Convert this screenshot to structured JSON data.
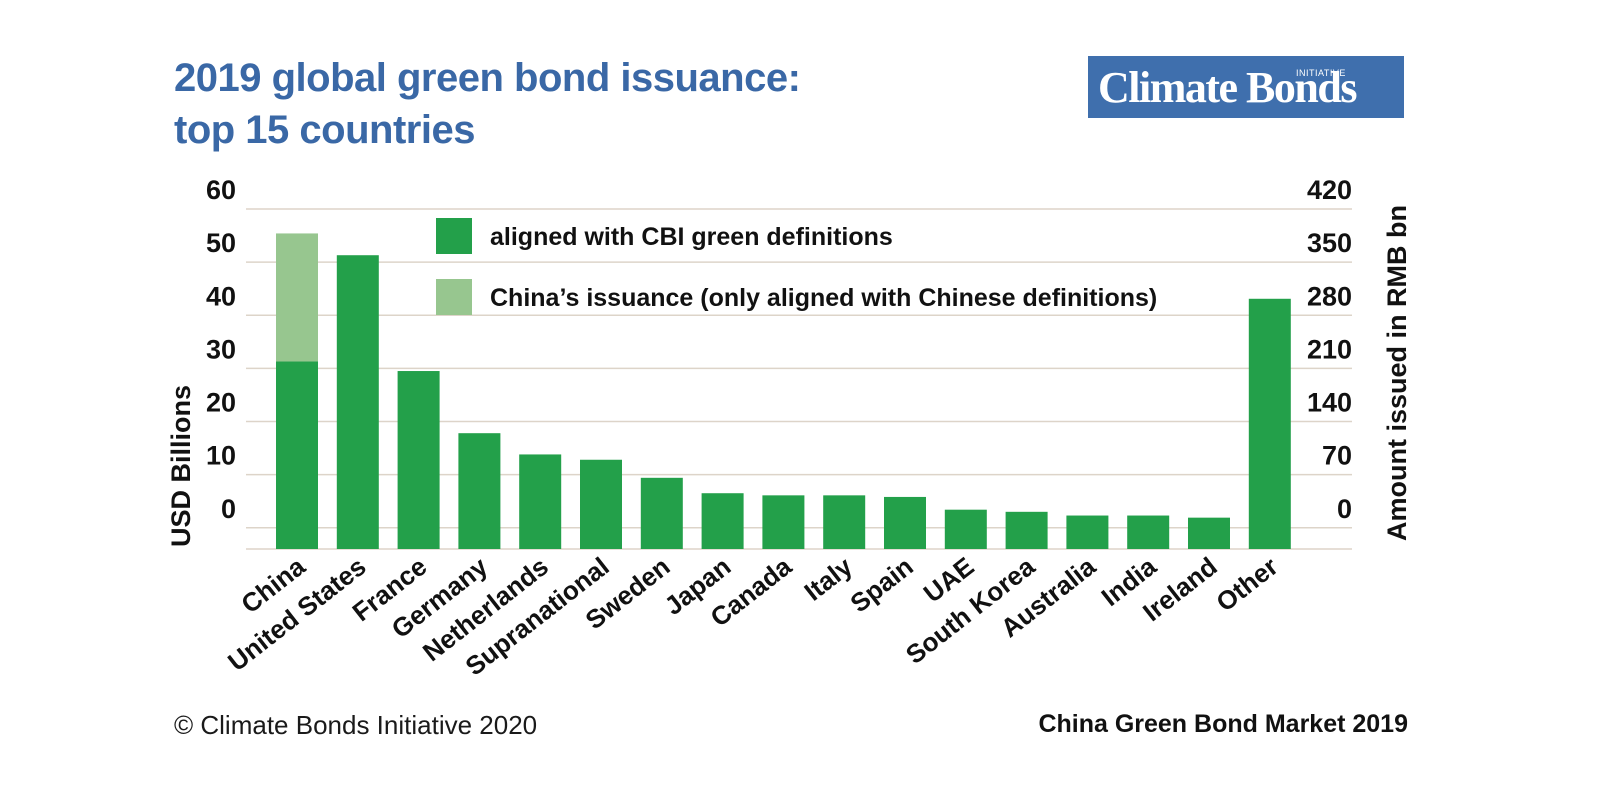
{
  "header": {
    "title_line1": "2019 global green bond issuance:",
    "title_line2": "top 15 countries"
  },
  "logo": {
    "main": "Climate Bonds",
    "sub": "INITIATIVE"
  },
  "footer": {
    "copyright": "© Climate Bonds Initiative 2020",
    "report": "China Green Bond Market 2019"
  },
  "colors": {
    "title": "#3a68a6",
    "logo_bg": "#3f6fad",
    "aligned": "#23a04a",
    "china_only": "#97c68f",
    "gridline": "#ddd4c9",
    "text": "#111111"
  },
  "chart_data": {
    "type": "bar",
    "stacked": true,
    "title": "2019 global green bond issuance: top 15 countries",
    "categories": [
      "China",
      "United States",
      "France",
      "Germany",
      "Netherlands",
      "Supranational",
      "Sweden",
      "Japan",
      "Canada",
      "Italy",
      "Spain",
      "UAE",
      "South Korea",
      "Australia",
      "India",
      "Ireland",
      "Other"
    ],
    "series": [
      {
        "name": "aligned with CBI green definitions",
        "color": "#23a04a",
        "values": [
          31.3,
          51.3,
          29.5,
          17.8,
          13.8,
          12.8,
          9.4,
          6.5,
          6.1,
          6.1,
          5.8,
          3.4,
          3.0,
          2.3,
          2.3,
          1.9,
          43.1
        ]
      },
      {
        "name": "China's issuance (only aligned with Chinese definitions)",
        "color": "#97c68f",
        "values": [
          24.1,
          0,
          0,
          0,
          0,
          0,
          0,
          0,
          0,
          0,
          0,
          0,
          0,
          0,
          0,
          0,
          0
        ]
      }
    ],
    "ylabel": "USD Billions",
    "y2label": "Amount issued in RMB bn",
    "ylim": [
      -4,
      60
    ],
    "yticks": [
      0,
      10,
      20,
      30,
      40,
      50,
      60
    ],
    "y2ticks": [
      0,
      70,
      140,
      210,
      280,
      350,
      420
    ],
    "legend": [
      {
        "label": "aligned with CBI green definitions",
        "color": "#23a04a"
      },
      {
        "label": "China’s issuance (only aligned with Chinese definitions)",
        "color": "#97c68f"
      }
    ],
    "legend_position": "top-center",
    "grid": true
  }
}
